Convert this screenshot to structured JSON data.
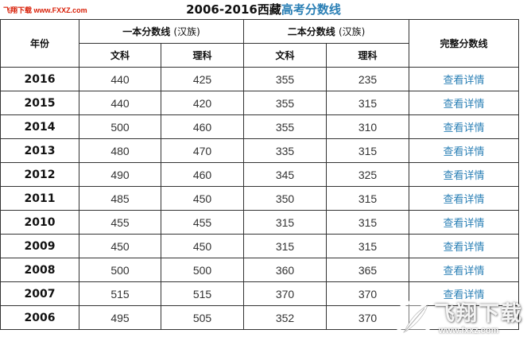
{
  "watermark_top": "飞翔下载 www.FXXZ.com",
  "title": {
    "main": "2006-2016西藏",
    "highlight": "高考分数线"
  },
  "headers": {
    "year": "年份",
    "first_tier": "一本分数线",
    "first_tier_note": "(汉族)",
    "second_tier": "二本分数线",
    "second_tier_note": "(汉族)",
    "full": "完整分数线",
    "arts": "文科",
    "science": "理科"
  },
  "rows": [
    {
      "year": "2016",
      "t1_arts": "440",
      "t1_sci": "425",
      "t2_arts": "355",
      "t2_sci": "235",
      "link": "查看详情"
    },
    {
      "year": "2015",
      "t1_arts": "440",
      "t1_sci": "420",
      "t2_arts": "355",
      "t2_sci": "315",
      "link": "查看详情"
    },
    {
      "year": "2014",
      "t1_arts": "500",
      "t1_sci": "460",
      "t2_arts": "355",
      "t2_sci": "310",
      "link": "查看详情"
    },
    {
      "year": "2013",
      "t1_arts": "480",
      "t1_sci": "470",
      "t2_arts": "335",
      "t2_sci": "315",
      "link": "查看详情"
    },
    {
      "year": "2012",
      "t1_arts": "490",
      "t1_sci": "460",
      "t2_arts": "345",
      "t2_sci": "325",
      "link": "查看详情"
    },
    {
      "year": "2011",
      "t1_arts": "485",
      "t1_sci": "450",
      "t2_arts": "350",
      "t2_sci": "315",
      "link": "查看详情"
    },
    {
      "year": "2010",
      "t1_arts": "455",
      "t1_sci": "455",
      "t2_arts": "315",
      "t2_sci": "315",
      "link": "查看详情"
    },
    {
      "year": "2009",
      "t1_arts": "450",
      "t1_sci": "450",
      "t2_arts": "315",
      "t2_sci": "315",
      "link": "查看详情"
    },
    {
      "year": "2008",
      "t1_arts": "500",
      "t1_sci": "500",
      "t2_arts": "360",
      "t2_sci": "365",
      "link": "查看详情"
    },
    {
      "year": "2007",
      "t1_arts": "515",
      "t1_sci": "515",
      "t2_arts": "370",
      "t2_sci": "370",
      "link": "查看详情"
    },
    {
      "year": "2006",
      "t1_arts": "495",
      "t1_sci": "505",
      "t2_arts": "352",
      "t2_sci": "370",
      "link": ""
    }
  ],
  "watermark_br": {
    "text": "飞翔下载",
    "url": "www.fxxz.com"
  },
  "colors": {
    "link": "#2a7fb5",
    "watermark_red": "#d81e06",
    "border": "#333333"
  }
}
